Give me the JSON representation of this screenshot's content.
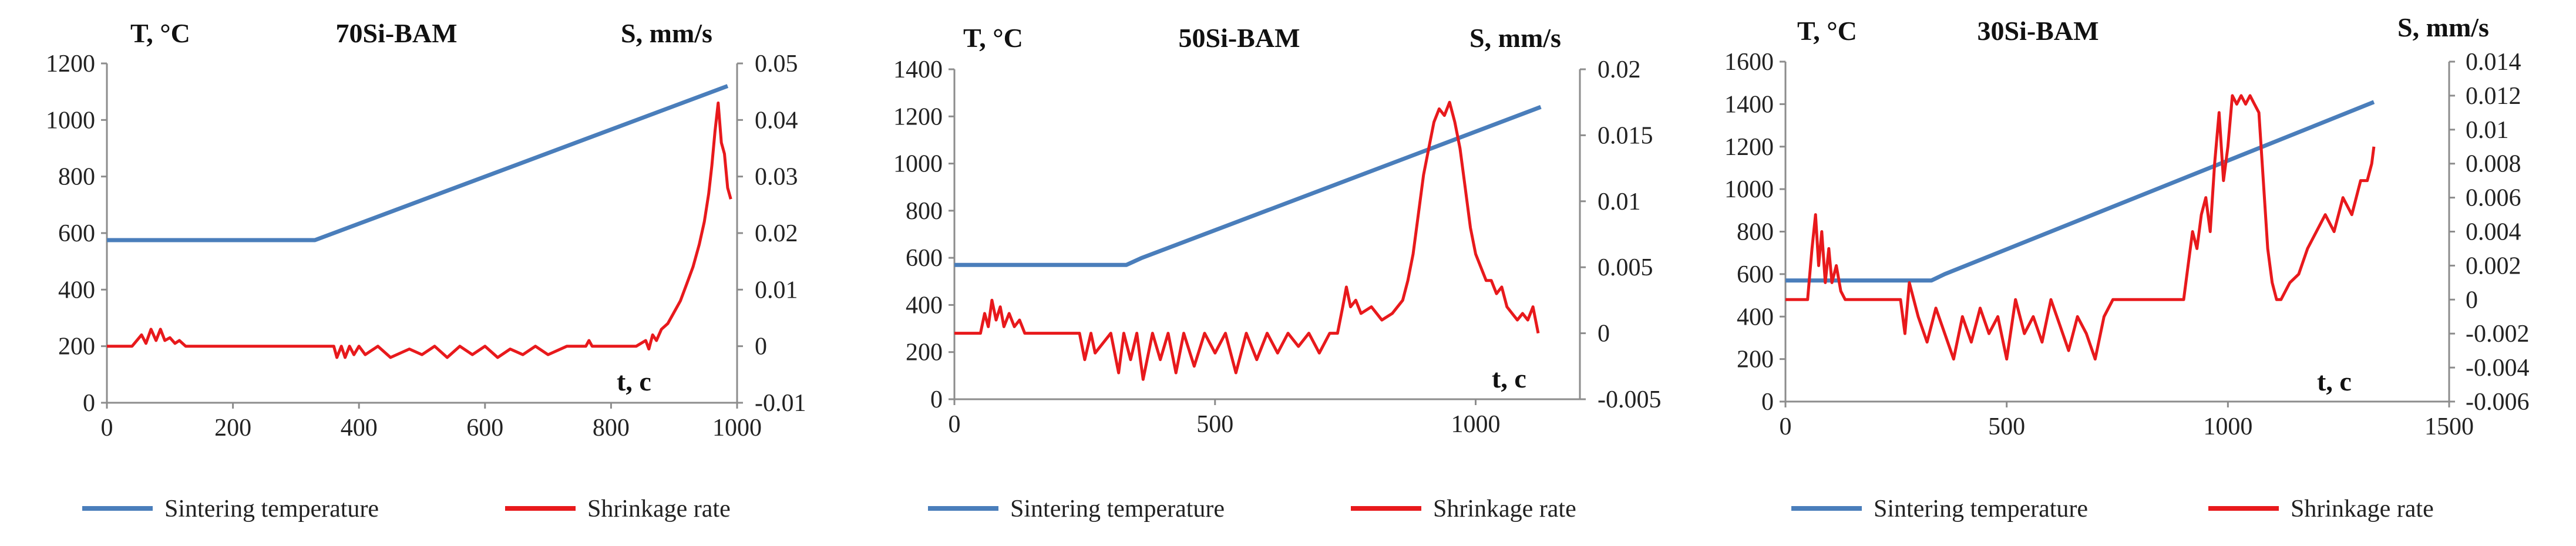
{
  "chart_data": [
    {
      "type": "line",
      "title": "70Si-BAM",
      "y_left_label": "T, °C",
      "y_right_label": "S, mm/s",
      "xlabel": "t, c",
      "xlim": [
        0,
        1000
      ],
      "ylim_left": [
        0,
        1200
      ],
      "ylim_right": [
        -0.01,
        0.05
      ],
      "x_ticks": [
        0,
        200,
        400,
        600,
        800,
        1000
      ],
      "y_left_ticks": [
        0,
        200,
        400,
        600,
        800,
        1000,
        1200
      ],
      "y_right_ticks": [
        -0.01,
        0,
        0.01,
        0.02,
        0.03,
        0.04,
        0.05
      ],
      "y_right_tick_labels": [
        "-0.01",
        "0",
        "0.01",
        "0.02",
        "0.03",
        "0.04",
        "0.05"
      ],
      "series": [
        {
          "name": "Sintering temperature",
          "axis": "left",
          "color": "#4a7ebb",
          "x": [
            0,
            330,
            360,
            985
          ],
          "y": [
            575,
            575,
            600,
            1120
          ]
        },
        {
          "name": "Shrinkage rate",
          "axis": "right",
          "color": "#e8191c",
          "x": [
            0,
            40,
            55,
            62,
            70,
            78,
            85,
            92,
            100,
            108,
            115,
            125,
            140,
            200,
            300,
            350,
            360,
            365,
            372,
            378,
            385,
            392,
            400,
            410,
            430,
            450,
            480,
            500,
            520,
            540,
            560,
            580,
            600,
            620,
            640,
            660,
            680,
            700,
            730,
            760,
            765,
            770,
            800,
            840,
            855,
            860,
            866,
            872,
            880,
            890,
            900,
            910,
            920,
            930,
            940,
            948,
            955,
            960,
            965,
            970,
            975,
            980,
            985,
            990
          ],
          "y": [
            0,
            0,
            0.002,
            0.0005,
            0.003,
            0.001,
            0.003,
            0.001,
            0.0015,
            0.0005,
            0.001,
            0,
            0,
            0,
            0,
            0,
            0,
            -0.002,
            0,
            -0.002,
            0,
            -0.0015,
            0,
            -0.0015,
            0,
            -0.002,
            -0.0005,
            -0.0015,
            0,
            -0.002,
            0,
            -0.0015,
            0,
            -0.002,
            -0.0005,
            -0.0015,
            0,
            -0.0015,
            0,
            0,
            0.001,
            0,
            0,
            0,
            0.001,
            -0.0005,
            0.002,
            0.001,
            0.003,
            0.004,
            0.006,
            0.008,
            0.011,
            0.014,
            0.018,
            0.022,
            0.027,
            0.032,
            0.038,
            0.043,
            0.036,
            0.034,
            0.028,
            0.026
          ]
        }
      ]
    },
    {
      "type": "line",
      "title": "50Si-BAM",
      "y_left_label": "T, °C",
      "y_right_label": "S, mm/s",
      "xlabel": "t, c",
      "xlim": [
        0,
        1200
      ],
      "ylim_left": [
        0,
        1400
      ],
      "ylim_right": [
        -0.005,
        0.02
      ],
      "x_ticks": [
        0,
        500,
        1000
      ],
      "y_left_ticks": [
        0,
        200,
        400,
        600,
        800,
        1000,
        1200,
        1400
      ],
      "y_right_ticks": [
        -0.005,
        0,
        0.005,
        0.01,
        0.015,
        0.02
      ],
      "y_right_tick_labels": [
        "-0.005",
        "0",
        "0.005",
        "0.01",
        "0.015",
        "0.02"
      ],
      "series": [
        {
          "name": "Sintering temperature",
          "axis": "left",
          "color": "#4a7ebb",
          "x": [
            0,
            330,
            360,
            1125
          ],
          "y": [
            570,
            570,
            600,
            1240
          ]
        },
        {
          "name": "Shrinkage rate",
          "axis": "right",
          "color": "#e8191c",
          "x": [
            0,
            50,
            58,
            65,
            72,
            80,
            88,
            95,
            105,
            115,
            125,
            135,
            240,
            250,
            262,
            270,
            300,
            315,
            325,
            338,
            350,
            362,
            380,
            395,
            410,
            425,
            440,
            460,
            480,
            500,
            520,
            540,
            560,
            580,
            600,
            620,
            640,
            660,
            680,
            700,
            720,
            735,
            745,
            752,
            760,
            770,
            780,
            800,
            820,
            840,
            860,
            870,
            880,
            890,
            900,
            910,
            920,
            930,
            940,
            950,
            960,
            970,
            980,
            990,
            1000,
            1010,
            1020,
            1030,
            1040,
            1050,
            1060,
            1070,
            1080,
            1090,
            1100,
            1110,
            1120
          ],
          "y": [
            0,
            0,
            0.0015,
            0.0005,
            0.0025,
            0.001,
            0.002,
            0.0005,
            0.0015,
            0.0005,
            0.001,
            0,
            0,
            -0.002,
            0,
            -0.0015,
            0,
            -0.003,
            0,
            -0.002,
            0,
            -0.0035,
            0,
            -0.002,
            0,
            -0.003,
            0,
            -0.0025,
            0,
            -0.0015,
            0,
            -0.003,
            0,
            -0.002,
            0,
            -0.0015,
            0,
            -0.001,
            0,
            -0.0015,
            0,
            0,
            0.002,
            0.0035,
            0.002,
            0.0025,
            0.0015,
            0.002,
            0.001,
            0.0015,
            0.0025,
            0.004,
            0.006,
            0.009,
            0.012,
            0.014,
            0.016,
            0.017,
            0.0165,
            0.0175,
            0.016,
            0.014,
            0.011,
            0.008,
            0.006,
            0.005,
            0.004,
            0.004,
            0.003,
            0.0035,
            0.002,
            0.0015,
            0.001,
            0.0015,
            0.001,
            0.002,
            0
          ]
        }
      ]
    },
    {
      "type": "line",
      "title": "30Si-BAM",
      "y_left_label": "T, °C",
      "y_right_label": "S, mm/s",
      "xlabel": "t, c",
      "xlim": [
        0,
        1500
      ],
      "ylim_left": [
        0,
        1600
      ],
      "ylim_right": [
        -0.006,
        0.014
      ],
      "x_ticks": [
        0,
        500,
        1000,
        1500
      ],
      "y_left_ticks": [
        0,
        200,
        400,
        600,
        800,
        1000,
        1200,
        1400,
        1600
      ],
      "y_right_ticks": [
        -0.006,
        -0.004,
        -0.002,
        0,
        0.002,
        0.004,
        0.006,
        0.008,
        0.01,
        0.012,
        0.014
      ],
      "y_right_tick_labels": [
        "-0.006",
        "-0.004",
        "-0.002",
        "0",
        "0.002",
        "0.004",
        "0.006",
        "0.008",
        "0.01",
        "0.012",
        "0.014"
      ],
      "series": [
        {
          "name": "Sintering temperature",
          "axis": "left",
          "color": "#4a7ebb",
          "x": [
            0,
            330,
            360,
            1330
          ],
          "y": [
            570,
            570,
            600,
            1410
          ]
        },
        {
          "name": "Shrinkage rate",
          "axis": "right",
          "color": "#e8191c",
          "x": [
            0,
            50,
            60,
            68,
            75,
            82,
            90,
            98,
            105,
            115,
            125,
            135,
            260,
            270,
            280,
            300,
            320,
            340,
            360,
            380,
            400,
            420,
            440,
            460,
            480,
            500,
            520,
            540,
            560,
            580,
            600,
            620,
            640,
            660,
            680,
            700,
            720,
            740,
            900,
            910,
            920,
            930,
            940,
            950,
            960,
            970,
            980,
            990,
            1000,
            1010,
            1020,
            1030,
            1040,
            1050,
            1060,
            1070,
            1080,
            1090,
            1100,
            1110,
            1120,
            1140,
            1160,
            1180,
            1200,
            1220,
            1240,
            1260,
            1280,
            1300,
            1315,
            1325,
            1330
          ],
          "y": [
            0,
            0,
            0.003,
            0.005,
            0.002,
            0.004,
            0.001,
            0.003,
            0.001,
            0.002,
            0.0005,
            0,
            0,
            -0.002,
            0.001,
            -0.001,
            -0.0025,
            -0.0005,
            -0.002,
            -0.0035,
            -0.001,
            -0.0025,
            -0.0005,
            -0.002,
            -0.001,
            -0.0035,
            0,
            -0.002,
            -0.001,
            -0.0025,
            0,
            -0.0015,
            -0.003,
            -0.001,
            -0.002,
            -0.0035,
            -0.001,
            0,
            0,
            0.002,
            0.004,
            0.003,
            0.005,
            0.006,
            0.004,
            0.008,
            0.011,
            0.007,
            0.009,
            0.012,
            0.0115,
            0.012,
            0.0115,
            0.012,
            0.0115,
            0.011,
            0.007,
            0.003,
            0.001,
            0,
            0,
            0.001,
            0.0015,
            0.003,
            0.004,
            0.005,
            0.004,
            0.006,
            0.005,
            0.007,
            0.007,
            0.008,
            0.009
          ]
        }
      ]
    }
  ]
}
